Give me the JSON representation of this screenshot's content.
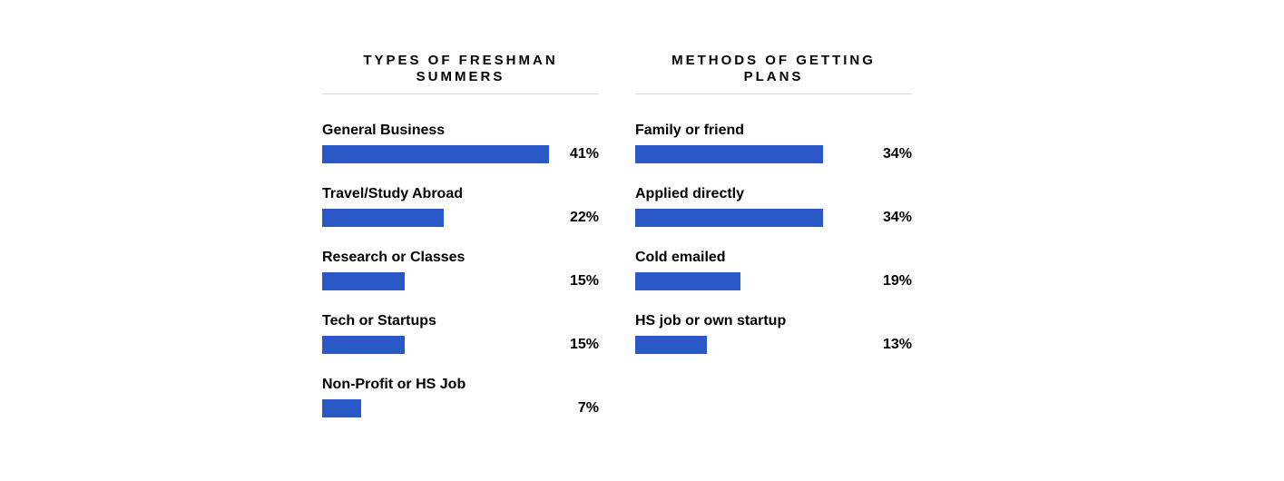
{
  "chart_data": [
    {
      "type": "bar",
      "orientation": "horizontal",
      "title": "TYPES OF FRESHMAN SUMMERS",
      "unit": "%",
      "xlim": [
        0,
        41
      ],
      "bar_color": "#2b58c7",
      "categories": [
        "General Business",
        "Travel/Study Abroad",
        "Research or Classes",
        "Tech or Startups",
        "Non-Profit or HS Job"
      ],
      "values": [
        41,
        22,
        15,
        15,
        7
      ],
      "value_labels": [
        "41%",
        "22%",
        "15%",
        "15%",
        "7%"
      ]
    },
    {
      "type": "bar",
      "orientation": "horizontal",
      "title": "METHODS OF GETTING PLANS",
      "unit": "%",
      "xlim": [
        0,
        41
      ],
      "bar_color": "#2b58c7",
      "categories": [
        "Family or friend",
        "Applied directly",
        "Cold emailed",
        "HS job or own startup"
      ],
      "values": [
        34,
        34,
        19,
        13
      ],
      "value_labels": [
        "34%",
        "34%",
        "19%",
        "13%"
      ]
    }
  ]
}
